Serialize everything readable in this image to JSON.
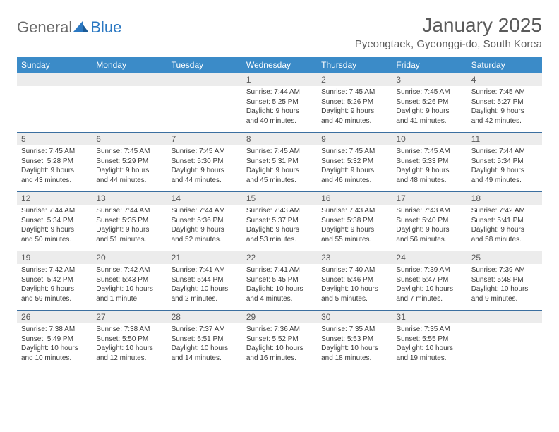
{
  "logo": {
    "general": "General",
    "blue": "Blue"
  },
  "title": "January 2025",
  "location": "Pyeongtaek, Gyeonggi-do, South Korea",
  "colors": {
    "header_bg": "#3b8bc8",
    "header_text": "#ffffff",
    "daynum_bg": "#ececec",
    "daynum_text": "#5a5a5a",
    "body_text": "#3a3a3a",
    "rule": "#3b6fa0",
    "logo_blue": "#2b78c2",
    "logo_gray": "#6b6b6b"
  },
  "day_headers": [
    "Sunday",
    "Monday",
    "Tuesday",
    "Wednesday",
    "Thursday",
    "Friday",
    "Saturday"
  ],
  "weeks": [
    [
      null,
      null,
      null,
      {
        "n": "1",
        "sr": "7:44 AM",
        "ss": "5:25 PM",
        "dl": "9 hours and 40 minutes."
      },
      {
        "n": "2",
        "sr": "7:45 AM",
        "ss": "5:26 PM",
        "dl": "9 hours and 40 minutes."
      },
      {
        "n": "3",
        "sr": "7:45 AM",
        "ss": "5:26 PM",
        "dl": "9 hours and 41 minutes."
      },
      {
        "n": "4",
        "sr": "7:45 AM",
        "ss": "5:27 PM",
        "dl": "9 hours and 42 minutes."
      }
    ],
    [
      {
        "n": "5",
        "sr": "7:45 AM",
        "ss": "5:28 PM",
        "dl": "9 hours and 43 minutes."
      },
      {
        "n": "6",
        "sr": "7:45 AM",
        "ss": "5:29 PM",
        "dl": "9 hours and 44 minutes."
      },
      {
        "n": "7",
        "sr": "7:45 AM",
        "ss": "5:30 PM",
        "dl": "9 hours and 44 minutes."
      },
      {
        "n": "8",
        "sr": "7:45 AM",
        "ss": "5:31 PM",
        "dl": "9 hours and 45 minutes."
      },
      {
        "n": "9",
        "sr": "7:45 AM",
        "ss": "5:32 PM",
        "dl": "9 hours and 46 minutes."
      },
      {
        "n": "10",
        "sr": "7:45 AM",
        "ss": "5:33 PM",
        "dl": "9 hours and 48 minutes."
      },
      {
        "n": "11",
        "sr": "7:44 AM",
        "ss": "5:34 PM",
        "dl": "9 hours and 49 minutes."
      }
    ],
    [
      {
        "n": "12",
        "sr": "7:44 AM",
        "ss": "5:34 PM",
        "dl": "9 hours and 50 minutes."
      },
      {
        "n": "13",
        "sr": "7:44 AM",
        "ss": "5:35 PM",
        "dl": "9 hours and 51 minutes."
      },
      {
        "n": "14",
        "sr": "7:44 AM",
        "ss": "5:36 PM",
        "dl": "9 hours and 52 minutes."
      },
      {
        "n": "15",
        "sr": "7:43 AM",
        "ss": "5:37 PM",
        "dl": "9 hours and 53 minutes."
      },
      {
        "n": "16",
        "sr": "7:43 AM",
        "ss": "5:38 PM",
        "dl": "9 hours and 55 minutes."
      },
      {
        "n": "17",
        "sr": "7:43 AM",
        "ss": "5:40 PM",
        "dl": "9 hours and 56 minutes."
      },
      {
        "n": "18",
        "sr": "7:42 AM",
        "ss": "5:41 PM",
        "dl": "9 hours and 58 minutes."
      }
    ],
    [
      {
        "n": "19",
        "sr": "7:42 AM",
        "ss": "5:42 PM",
        "dl": "9 hours and 59 minutes."
      },
      {
        "n": "20",
        "sr": "7:42 AM",
        "ss": "5:43 PM",
        "dl": "10 hours and 1 minute."
      },
      {
        "n": "21",
        "sr": "7:41 AM",
        "ss": "5:44 PM",
        "dl": "10 hours and 2 minutes."
      },
      {
        "n": "22",
        "sr": "7:41 AM",
        "ss": "5:45 PM",
        "dl": "10 hours and 4 minutes."
      },
      {
        "n": "23",
        "sr": "7:40 AM",
        "ss": "5:46 PM",
        "dl": "10 hours and 5 minutes."
      },
      {
        "n": "24",
        "sr": "7:39 AM",
        "ss": "5:47 PM",
        "dl": "10 hours and 7 minutes."
      },
      {
        "n": "25",
        "sr": "7:39 AM",
        "ss": "5:48 PM",
        "dl": "10 hours and 9 minutes."
      }
    ],
    [
      {
        "n": "26",
        "sr": "7:38 AM",
        "ss": "5:49 PM",
        "dl": "10 hours and 10 minutes."
      },
      {
        "n": "27",
        "sr": "7:38 AM",
        "ss": "5:50 PM",
        "dl": "10 hours and 12 minutes."
      },
      {
        "n": "28",
        "sr": "7:37 AM",
        "ss": "5:51 PM",
        "dl": "10 hours and 14 minutes."
      },
      {
        "n": "29",
        "sr": "7:36 AM",
        "ss": "5:52 PM",
        "dl": "10 hours and 16 minutes."
      },
      {
        "n": "30",
        "sr": "7:35 AM",
        "ss": "5:53 PM",
        "dl": "10 hours and 18 minutes."
      },
      {
        "n": "31",
        "sr": "7:35 AM",
        "ss": "5:55 PM",
        "dl": "10 hours and 19 minutes."
      },
      null
    ]
  ],
  "labels": {
    "sunrise": "Sunrise:",
    "sunset": "Sunset:",
    "daylight": "Daylight:"
  }
}
